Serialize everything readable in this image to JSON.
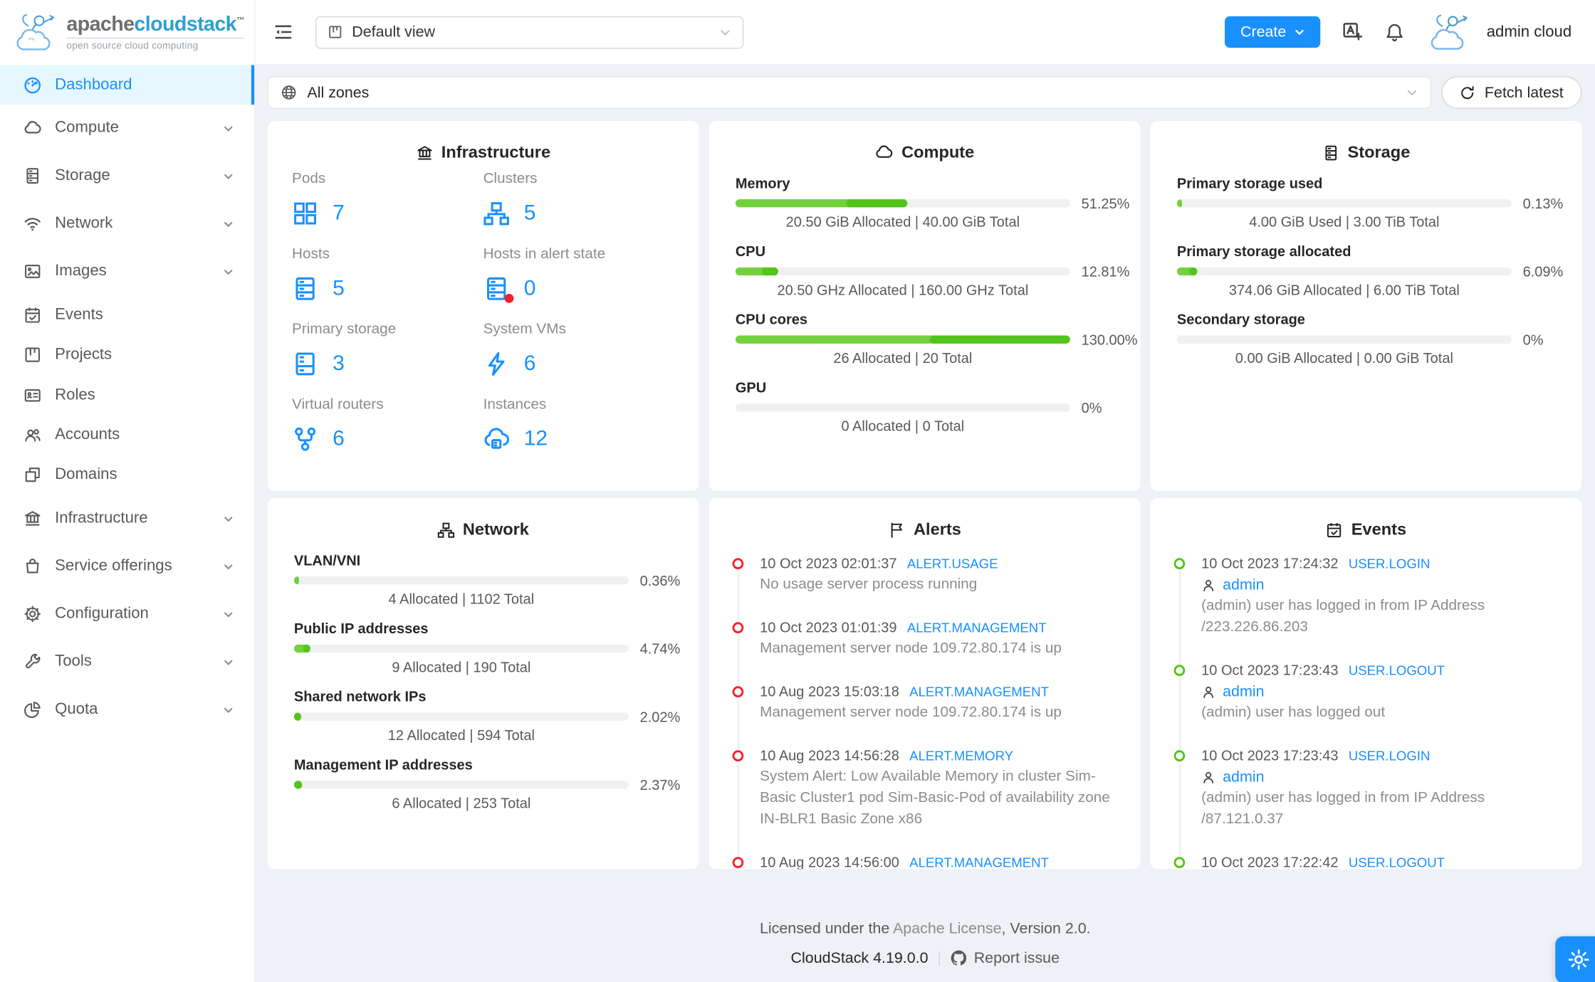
{
  "colors": {
    "accent": "#1890ff",
    "menu_active_bg": "#e6f7ff",
    "page_bg": "#eef1f5",
    "green_light": "#73d13d",
    "green_dark": "#52c41a",
    "track": "#f0f0f0",
    "alert_red": "#f5222d",
    "event_green": "#52c41a",
    "brand_gray": "#6d6e71",
    "brand_blue": "#2f9fd0",
    "logo_blue": "#5aa7dc"
  },
  "brand": {
    "word_gray": "apache",
    "word_blue": "cloudstack",
    "trademark": "™",
    "tagline": "open source cloud computing"
  },
  "header": {
    "view_select_value": "Default view",
    "create_label": "Create",
    "user_name": "admin cloud"
  },
  "zonebar": {
    "zone_value": "All zones",
    "fetch_label": "Fetch latest"
  },
  "sidebar": {
    "items": [
      {
        "label": "Dashboard",
        "icon": "dashboard-icon",
        "active": true,
        "has_children": false
      },
      {
        "label": "Compute",
        "icon": "cloud-icon",
        "active": false,
        "has_children": true
      },
      {
        "label": "Storage",
        "icon": "storage-icon",
        "active": false,
        "has_children": true
      },
      {
        "label": "Network",
        "icon": "wifi-icon",
        "active": false,
        "has_children": true
      },
      {
        "label": "Images",
        "icon": "picture-icon",
        "active": false,
        "has_children": true
      },
      {
        "label": "Events",
        "icon": "calendar-check-icon",
        "active": false,
        "has_children": false
      },
      {
        "label": "Projects",
        "icon": "project-board-icon",
        "active": false,
        "has_children": false
      },
      {
        "label": "Roles",
        "icon": "idcard-icon",
        "active": false,
        "has_children": false
      },
      {
        "label": "Accounts",
        "icon": "team-icon",
        "active": false,
        "has_children": false
      },
      {
        "label": "Domains",
        "icon": "domains-icon",
        "active": false,
        "has_children": false
      },
      {
        "label": "Infrastructure",
        "icon": "bank-icon",
        "active": false,
        "has_children": true
      },
      {
        "label": "Service offerings",
        "icon": "shopping-bag-icon",
        "active": false,
        "has_children": true
      },
      {
        "label": "Configuration",
        "icon": "gear-icon",
        "active": false,
        "has_children": true
      },
      {
        "label": "Tools",
        "icon": "wrench-icon",
        "active": false,
        "has_children": true
      },
      {
        "label": "Quota",
        "icon": "pie-chart-icon",
        "active": false,
        "has_children": true
      }
    ]
  },
  "cards": {
    "infrastructure": {
      "title": "Infrastructure",
      "stats": [
        {
          "label": "Pods",
          "value": "7",
          "icon": "appstore-icon"
        },
        {
          "label": "Clusters",
          "value": "5",
          "icon": "cluster-icon"
        },
        {
          "label": "Hosts",
          "value": "5",
          "icon": "database-icon"
        },
        {
          "label": "Hosts in alert state",
          "value": "0",
          "icon": "database-alert-icon"
        },
        {
          "label": "Primary storage",
          "value": "3",
          "icon": "hdd-icon"
        },
        {
          "label": "System VMs",
          "value": "6",
          "icon": "thunderbolt-icon"
        },
        {
          "label": "Virtual routers",
          "value": "6",
          "icon": "fork-icon"
        },
        {
          "label": "Instances",
          "value": "12",
          "icon": "cloud-server-icon"
        }
      ]
    },
    "compute": {
      "title": "Compute",
      "meters": [
        {
          "label": "Memory",
          "percent": 51.25,
          "split": 33,
          "percent_label": "51.25%",
          "subtext": "20.50 GiB Allocated | 40.00 GiB Total"
        },
        {
          "label": "CPU",
          "percent": 12.81,
          "split": 8,
          "percent_label": "12.81%",
          "subtext": "20.50 GHz Allocated | 160.00 GHz Total"
        },
        {
          "label": "CPU cores",
          "percent": 100,
          "split": 58,
          "percent_label": "130.00%",
          "subtext": "26 Allocated | 20 Total"
        },
        {
          "label": "GPU",
          "percent": 0,
          "split": 0,
          "percent_label": "0%",
          "subtext": "0 Allocated | 0 Total"
        }
      ]
    },
    "storage": {
      "title": "Storage",
      "meters": [
        {
          "label": "Primary storage used",
          "percent": 0.4,
          "split": 0.4,
          "percent_label": "0.13%",
          "subtext": "4.00 GiB Used | 3.00 TiB Total"
        },
        {
          "label": "Primary storage allocated",
          "percent": 6.09,
          "split": 3.7,
          "percent_label": "6.09%",
          "subtext": "374.06 GiB Allocated | 6.00 TiB Total"
        },
        {
          "label": "Secondary storage",
          "percent": 0,
          "split": 0,
          "percent_label": "0%",
          "subtext": "0.00 GiB Allocated | 0.00 GiB Total"
        }
      ]
    },
    "network": {
      "title": "Network",
      "meters": [
        {
          "label": "VLAN/VNI",
          "percent": 0.8,
          "split": 0.8,
          "percent_label": "0.36%",
          "subtext": "4 Allocated | 1102 Total"
        },
        {
          "label": "Public IP addresses",
          "percent": 4.74,
          "split": 2.6,
          "percent_label": "4.74%",
          "subtext": "9 Allocated | 190 Total"
        },
        {
          "label": "Shared network IPs",
          "percent": 2.02,
          "split": 0,
          "percent_label": "2.02%",
          "subtext": "12 Allocated | 594 Total"
        },
        {
          "label": "Management IP addresses",
          "percent": 2.37,
          "split": 0,
          "percent_label": "2.37%",
          "subtext": "6 Allocated | 253 Total"
        }
      ]
    },
    "alerts": {
      "title": "Alerts",
      "items": [
        {
          "time": "10 Oct 2023 02:01:37",
          "tag": "ALERT.USAGE",
          "lines": [
            "No usage server process running"
          ]
        },
        {
          "time": "10 Oct 2023 01:01:39",
          "tag": "ALERT.MANAGEMENT",
          "lines": [
            "Management server node 109.72.80.174 is up"
          ]
        },
        {
          "time": "10 Aug 2023 15:03:18",
          "tag": "ALERT.MANAGEMENT",
          "lines": [
            "Management server node 109.72.80.174 is up"
          ]
        },
        {
          "time": "10 Aug 2023 14:56:28",
          "tag": "ALERT.MEMORY",
          "lines": [
            "System Alert: Low Available Memory in cluster Sim-",
            "Basic Cluster1 pod Sim-Basic-Pod of availability zone",
            "IN-BLR1 Basic Zone x86"
          ]
        },
        {
          "time": "10 Aug 2023 14:56:00",
          "tag": "ALERT.MANAGEMENT",
          "lines": []
        }
      ]
    },
    "events": {
      "title": "Events",
      "items": [
        {
          "time": "10 Oct 2023 17:24:32",
          "tag": "USER.LOGIN",
          "user": "admin",
          "lines": [
            "(admin) user has logged in from IP Address",
            "/223.226.86.203"
          ]
        },
        {
          "time": "10 Oct 2023 17:23:43",
          "tag": "USER.LOGOUT",
          "user": "admin",
          "lines": [
            "(admin) user has logged out"
          ]
        },
        {
          "time": "10 Oct 2023 17:23:43",
          "tag": "USER.LOGIN",
          "user": "admin",
          "lines": [
            "(admin) user has logged in from IP Address",
            "/87.121.0.37"
          ]
        },
        {
          "time": "10 Oct 2023 17:22:42",
          "tag": "USER.LOGOUT",
          "user": "",
          "lines": []
        }
      ]
    }
  },
  "footer": {
    "license_prefix": "Licensed under the ",
    "license_link": "Apache License",
    "license_suffix": ", Version 2.0.",
    "version": "CloudStack 4.19.0.0",
    "separator": "|",
    "report_label": "Report issue"
  }
}
